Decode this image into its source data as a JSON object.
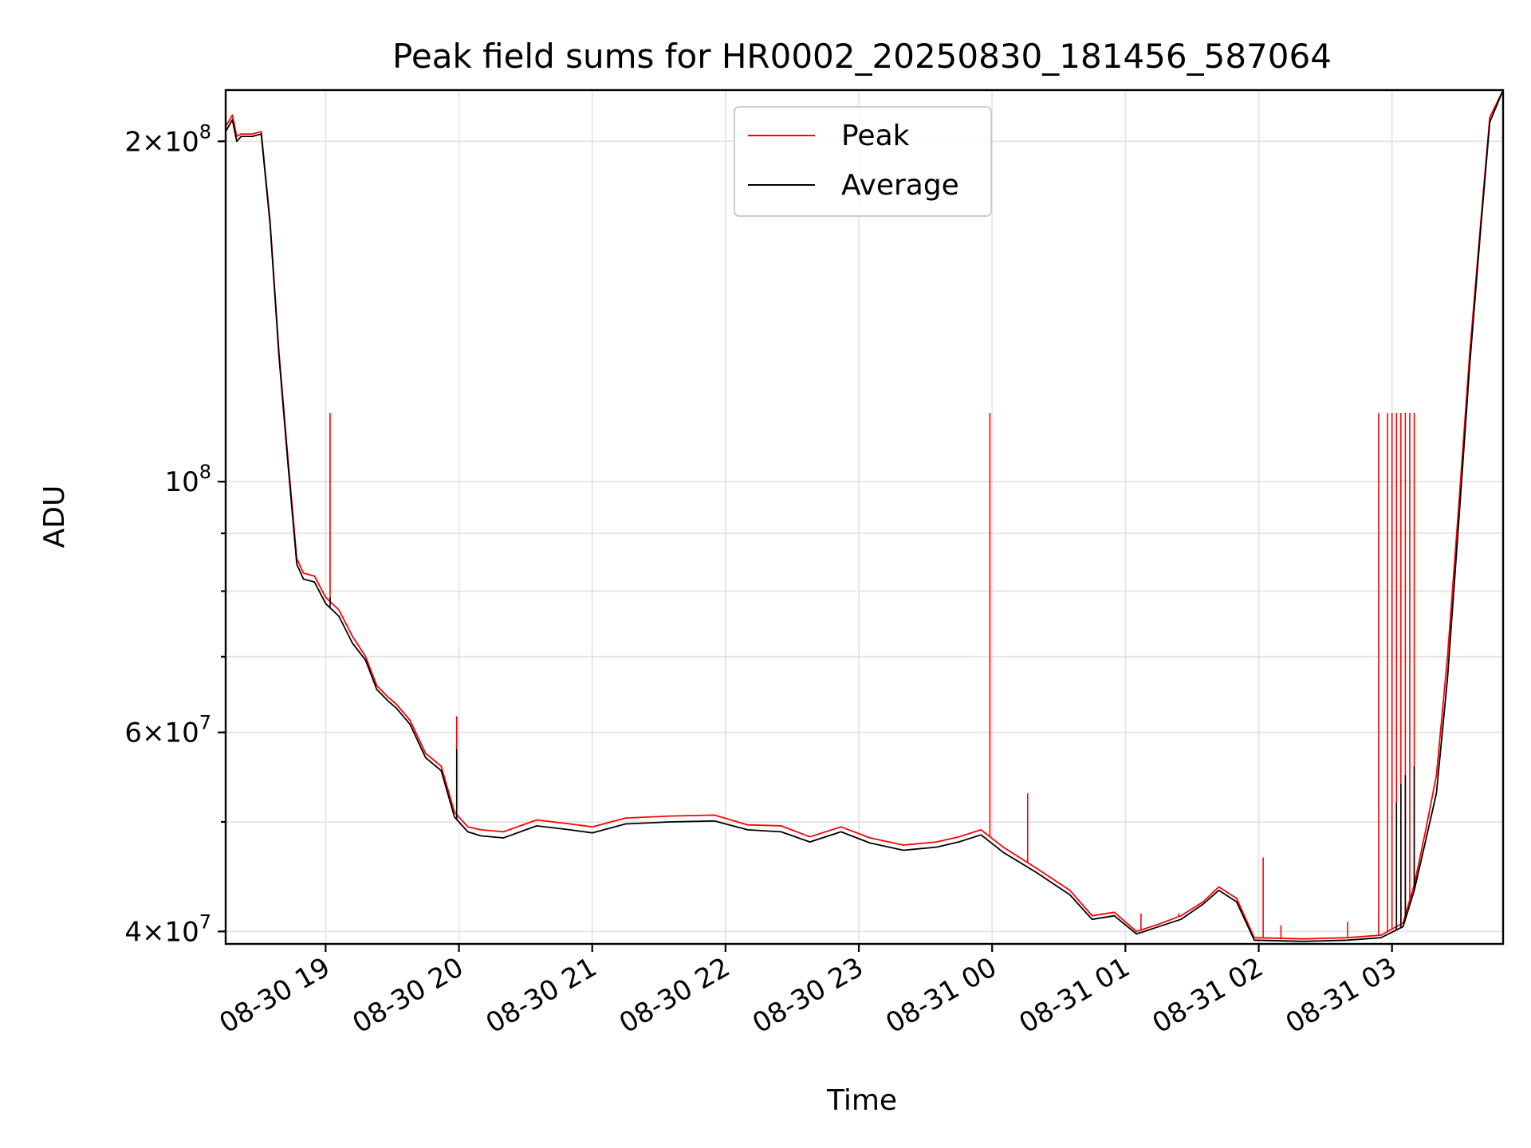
{
  "chart_data": {
    "type": "line",
    "title": "Peak field sums for HR0002_20250830_181456_587064",
    "xlabel": "Time",
    "ylabel": "ADU",
    "y_scale": "log",
    "ylim": [
      39000000,
      222000000
    ],
    "xlim": [
      "2025-08-30 18:15",
      "2025-08-31 03:50"
    ],
    "grid": true,
    "legend_position": "upper center",
    "x_ticks": [
      "2025-08-30 19:00",
      "2025-08-30 20:00",
      "2025-08-30 21:00",
      "2025-08-30 22:00",
      "2025-08-30 23:00",
      "2025-08-31 00:00",
      "2025-08-31 01:00",
      "2025-08-31 02:00",
      "2025-08-31 03:00"
    ],
    "x_tick_labels": [
      "08-30 19",
      "08-30 20",
      "08-30 21",
      "08-30 22",
      "08-30 23",
      "08-31 00",
      "08-31 01",
      "08-31 02",
      "08-31 03"
    ],
    "y_ticks": [
      40000000,
      60000000,
      100000000,
      200000000
    ],
    "y_tick_labels": [
      {
        "mantissa": "4",
        "times": "×",
        "base": "10",
        "exp": "7"
      },
      {
        "mantissa": "6",
        "times": "×",
        "base": "10",
        "exp": "7"
      },
      {
        "mantissa": "",
        "times": "",
        "base": "10",
        "exp": "8"
      },
      {
        "mantissa": "2",
        "times": "×",
        "base": "10",
        "exp": "8"
      }
    ],
    "series": [
      {
        "name": "Peak",
        "color": "#ff0000",
        "x": [
          "2025-08-30 18:15",
          "2025-08-30 18:18",
          "2025-08-30 18:20",
          "2025-08-30 18:22",
          "2025-08-30 18:27",
          "2025-08-30 18:31",
          "2025-08-30 18:35",
          "2025-08-30 18:39",
          "2025-08-30 18:43",
          "2025-08-30 18:47",
          "2025-08-30 18:50",
          "2025-08-30 18:55",
          "2025-08-30 19:00",
          "2025-08-30 19:06",
          "2025-08-30 19:12",
          "2025-08-30 19:18",
          "2025-08-30 19:23",
          "2025-08-30 19:28",
          "2025-08-30 19:32",
          "2025-08-30 19:38",
          "2025-08-30 19:45",
          "2025-08-30 19:52",
          "2025-08-30 19:58",
          "2025-08-30 20:04",
          "2025-08-30 20:10",
          "2025-08-30 20:20",
          "2025-08-30 20:35",
          "2025-08-30 20:50",
          "2025-08-30 21:00",
          "2025-08-30 21:15",
          "2025-08-30 21:35",
          "2025-08-30 21:55",
          "2025-08-30 22:10",
          "2025-08-30 22:25",
          "2025-08-30 22:38",
          "2025-08-30 22:52",
          "2025-08-30 23:05",
          "2025-08-30 23:20",
          "2025-08-30 23:35",
          "2025-08-30 23:45",
          "2025-08-30 23:55",
          "2025-08-31 00:05",
          "2025-08-31 00:20",
          "2025-08-31 00:35",
          "2025-08-31 00:45",
          "2025-08-31 00:55",
          "2025-08-31 01:05",
          "2025-08-31 01:15",
          "2025-08-31 01:25",
          "2025-08-31 01:35",
          "2025-08-31 01:42",
          "2025-08-31 01:50",
          "2025-08-31 01:58",
          "2025-08-31 02:20",
          "2025-08-31 02:40",
          "2025-08-31 02:55",
          "2025-08-31 03:05",
          "2025-08-31 03:10",
          "2025-08-31 03:15",
          "2025-08-31 03:20",
          "2025-08-31 03:25",
          "2025-08-31 03:30",
          "2025-08-31 03:35",
          "2025-08-31 03:40",
          "2025-08-31 03:44",
          "2025-08-31 03:50"
        ],
        "values": [
          206000000,
          211000000,
          202000000,
          203000000,
          203000000,
          204000000,
          170000000,
          130000000,
          105000000,
          85500000,
          83000000,
          82500000,
          79000000,
          77000000,
          73000000,
          70000000,
          66000000,
          64500000,
          63500000,
          61500000,
          57500000,
          56000000,
          51000000,
          49500000,
          49200000,
          49000000,
          50200000,
          49800000,
          49500000,
          50400000,
          50600000,
          50700000,
          49700000,
          49600000,
          48500000,
          49500000,
          48400000,
          47700000,
          48000000,
          48500000,
          49200000,
          47500000,
          45500000,
          43500000,
          41300000,
          41600000,
          40000000,
          40600000,
          41300000,
          42500000,
          43800000,
          42800000,
          39500000,
          39400000,
          39500000,
          39700000,
          40700000,
          44000000,
          49000000,
          55000000,
          70000000,
          95000000,
          130000000,
          170000000,
          210000000,
          222000000
        ],
        "spikes": [
          {
            "x": "2025-08-30 19:02",
            "y": 115000000
          },
          {
            "x": "2025-08-30 19:59",
            "y": 62000000
          },
          {
            "x": "2025-08-30 23:59",
            "y": 115000000
          },
          {
            "x": "2025-08-31 00:16",
            "y": 53000000
          },
          {
            "x": "2025-08-31 01:07",
            "y": 41500000
          },
          {
            "x": "2025-08-31 01:24",
            "y": 41500000
          },
          {
            "x": "2025-08-31 02:02",
            "y": 46500000
          },
          {
            "x": "2025-08-31 02:10",
            "y": 40500000
          },
          {
            "x": "2025-08-31 02:40",
            "y": 40800000
          },
          {
            "x": "2025-08-31 02:54",
            "y": 115000000
          },
          {
            "x": "2025-08-31 02:58",
            "y": 115000000
          },
          {
            "x": "2025-08-31 03:00",
            "y": 115000000
          },
          {
            "x": "2025-08-31 03:02",
            "y": 115000000
          },
          {
            "x": "2025-08-31 03:04",
            "y": 115000000
          },
          {
            "x": "2025-08-31 03:06",
            "y": 115000000
          },
          {
            "x": "2025-08-31 03:08",
            "y": 115000000
          },
          {
            "x": "2025-08-31 03:10",
            "y": 115000000
          }
        ]
      },
      {
        "name": "Average",
        "color": "#000000",
        "x": [
          "2025-08-30 18:15",
          "2025-08-30 18:18",
          "2025-08-30 18:20",
          "2025-08-30 18:22",
          "2025-08-30 18:27",
          "2025-08-30 18:31",
          "2025-08-30 18:35",
          "2025-08-30 18:39",
          "2025-08-30 18:43",
          "2025-08-30 18:47",
          "2025-08-30 18:50",
          "2025-08-30 18:55",
          "2025-08-30 19:00",
          "2025-08-30 19:06",
          "2025-08-30 19:12",
          "2025-08-30 19:18",
          "2025-08-30 19:23",
          "2025-08-30 19:28",
          "2025-08-30 19:32",
          "2025-08-30 19:38",
          "2025-08-30 19:45",
          "2025-08-30 19:52",
          "2025-08-30 19:58",
          "2025-08-30 20:04",
          "2025-08-30 20:10",
          "2025-08-30 20:20",
          "2025-08-30 20:35",
          "2025-08-30 20:50",
          "2025-08-30 21:00",
          "2025-08-30 21:15",
          "2025-08-30 21:35",
          "2025-08-30 21:55",
          "2025-08-30 22:10",
          "2025-08-30 22:25",
          "2025-08-30 22:38",
          "2025-08-30 22:52",
          "2025-08-30 23:05",
          "2025-08-30 23:20",
          "2025-08-30 23:35",
          "2025-08-30 23:45",
          "2025-08-30 23:55",
          "2025-08-31 00:05",
          "2025-08-31 00:20",
          "2025-08-31 00:35",
          "2025-08-31 00:45",
          "2025-08-31 00:55",
          "2025-08-31 01:05",
          "2025-08-31 01:15",
          "2025-08-31 01:25",
          "2025-08-31 01:35",
          "2025-08-31 01:42",
          "2025-08-31 01:50",
          "2025-08-31 01:58",
          "2025-08-31 02:20",
          "2025-08-31 02:40",
          "2025-08-31 02:55",
          "2025-08-31 03:05",
          "2025-08-31 03:10",
          "2025-08-31 03:15",
          "2025-08-31 03:20",
          "2025-08-31 03:25",
          "2025-08-31 03:30",
          "2025-08-31 03:35",
          "2025-08-31 03:40",
          "2025-08-31 03:44",
          "2025-08-31 03:50"
        ],
        "values": [
          204000000,
          209000000,
          200000000,
          202000000,
          202000000,
          203000000,
          169000000,
          129000000,
          104000000,
          84500000,
          82000000,
          81500000,
          78000000,
          76000000,
          72000000,
          69500000,
          65500000,
          64000000,
          63000000,
          61000000,
          57000000,
          55500000,
          50500000,
          49000000,
          48600000,
          48400000,
          49600000,
          49200000,
          48900000,
          49800000,
          50000000,
          50100000,
          49200000,
          49000000,
          48000000,
          49000000,
          47900000,
          47200000,
          47500000,
          48000000,
          48700000,
          47000000,
          45100000,
          43100000,
          41000000,
          41300000,
          39800000,
          40400000,
          41000000,
          42300000,
          43500000,
          42500000,
          39300000,
          39200000,
          39300000,
          39500000,
          40400000,
          43500000,
          48000000,
          53000000,
          67000000,
          92000000,
          127000000,
          168000000,
          208000000,
          222000000
        ],
        "spikes": [
          {
            "x": "2025-08-30 19:02",
            "y": 79000000
          },
          {
            "x": "2025-08-30 19:59",
            "y": 58000000
          },
          {
            "x": "2025-08-31 03:02",
            "y": 52000000
          },
          {
            "x": "2025-08-31 03:04",
            "y": 54000000
          },
          {
            "x": "2025-08-31 03:06",
            "y": 55000000
          },
          {
            "x": "2025-08-31 03:10",
            "y": 56000000
          }
        ]
      }
    ]
  }
}
